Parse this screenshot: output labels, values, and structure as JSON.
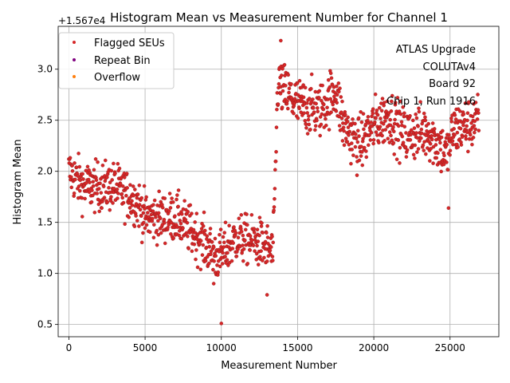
{
  "chart_data": {
    "type": "scatter",
    "title": "Histogram Mean vs Measurement Number for Channel 1",
    "xlabel": "Measurement Number",
    "ylabel": "Histogram Mean",
    "offset_label": "+1.567e4",
    "xlim": [
      -700,
      28200
    ],
    "ylim": [
      0.38,
      3.42
    ],
    "xticks": [
      0,
      5000,
      10000,
      15000,
      20000,
      25000
    ],
    "xtick_labels": [
      "0",
      "5000",
      "10000",
      "15000",
      "20000",
      "25000"
    ],
    "yticks": [
      0.5,
      1.0,
      1.5,
      2.0,
      2.5,
      3.0
    ],
    "ytick_labels": [
      "0.5",
      "1.0",
      "1.5",
      "2.0",
      "2.5",
      "3.0"
    ],
    "grid": true,
    "legend_position": "top-left",
    "series": [
      {
        "name": "Flagged SEUs",
        "color": "#d62728",
        "marker": "dot",
        "trend": [
          [
            0,
            2.0
          ],
          [
            1000,
            1.85
          ],
          [
            3000,
            1.85
          ],
          [
            4500,
            1.7
          ],
          [
            5000,
            1.55
          ],
          [
            7000,
            1.55
          ],
          [
            8500,
            1.35
          ],
          [
            9800,
            1.15
          ],
          [
            11000,
            1.35
          ],
          [
            12500,
            1.3
          ],
          [
            13400,
            1.2
          ],
          [
            13700,
            2.85
          ],
          [
            15000,
            2.65
          ],
          [
            16500,
            2.6
          ],
          [
            17500,
            2.8
          ],
          [
            18000,
            2.45
          ],
          [
            19000,
            2.25
          ],
          [
            20000,
            2.45
          ],
          [
            21000,
            2.55
          ],
          [
            22000,
            2.35
          ],
          [
            23500,
            2.4
          ],
          [
            24800,
            2.15
          ],
          [
            25200,
            2.4
          ],
          [
            26900,
            2.5
          ]
        ],
        "outliers": [
          [
            10000,
            0.51
          ],
          [
            13900,
            3.28
          ],
          [
            9500,
            0.9
          ],
          [
            13000,
            0.79
          ],
          [
            24900,
            1.64
          ]
        ]
      },
      {
        "name": "Repeat Bin",
        "color": "#800080",
        "marker": "dot"
      },
      {
        "name": "Overflow",
        "color": "#ff7f0e",
        "marker": "dot"
      }
    ],
    "annotation": [
      "ATLAS Upgrade",
      "COLUTAv4",
      "Board 92",
      "Chip 1, Run 1916"
    ]
  }
}
